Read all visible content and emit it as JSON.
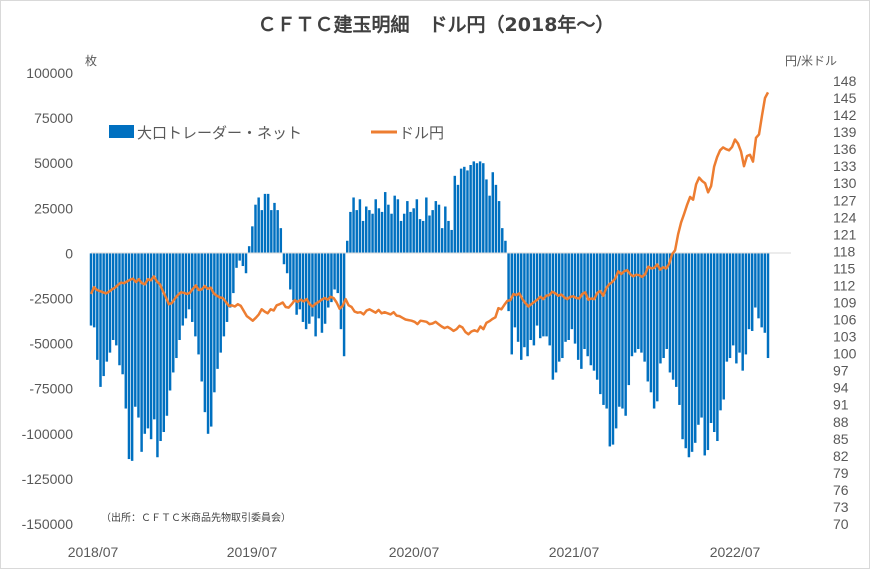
{
  "chart_data": {
    "type": "bar+line",
    "title": "ＣＦＴＣ建玉明細　ドル円（2018年～）",
    "left_unit": "枚",
    "right_unit": "円/米ドル",
    "source_note": "（出所：ＣＦＴＣ米商品先物取引委員会）",
    "left_ylim": [
      -150000,
      100000
    ],
    "left_ticks": [
      "100000",
      "75000",
      "50000",
      "25000",
      "0",
      "-25000",
      "-50000",
      "-75000",
      "-100000",
      "-125000",
      "-150000"
    ],
    "right_ylim": [
      70,
      150
    ],
    "right_ticks": [
      "148",
      "145",
      "142",
      "139",
      "136",
      "133",
      "130",
      "127",
      "124",
      "121",
      "118",
      "115",
      "112",
      "109",
      "106",
      "103",
      "100",
      "97",
      "94",
      "91",
      "88",
      "85",
      "82",
      "79",
      "76",
      "73",
      "70"
    ],
    "x_labels": [
      "2018/07",
      "2019/07",
      "2020/07",
      "2021/07",
      "2022/07"
    ],
    "x_range": [
      "2018/07",
      "2022/10"
    ],
    "legend_position": "top-left",
    "series": [
      {
        "name": "大口トレーダー・ネット",
        "type": "bar",
        "color": "#0070c0",
        "values": [
          -40000,
          -41000,
          -59000,
          -74000,
          -68000,
          -60000,
          -55000,
          -48000,
          -51000,
          -62000,
          -67000,
          -86000,
          -114000,
          -115000,
          -85000,
          -91000,
          -110000,
          -100000,
          -97000,
          -103000,
          -92000,
          -113000,
          -104000,
          -99000,
          -90000,
          -76000,
          -66000,
          -58000,
          -48000,
          -40000,
          -36000,
          -31000,
          -38000,
          -46000,
          -56000,
          -71000,
          -88000,
          -100000,
          -96000,
          -77000,
          -64000,
          -55000,
          -46000,
          -38000,
          -30000,
          -22000,
          -8000,
          -4000,
          -7000,
          -11000,
          4000,
          15000,
          27000,
          31000,
          24000,
          33000,
          33000,
          24000,
          28000,
          24000,
          14000,
          -6000,
          -11000,
          -20000,
          -26000,
          -34000,
          -31000,
          -38000,
          -42000,
          -39000,
          -35000,
          -46000,
          -36000,
          -44000,
          -39000,
          -30000,
          -27000,
          -20000,
          -22000,
          -42000,
          -57000,
          7000,
          23000,
          31000,
          24000,
          30000,
          18000,
          26000,
          24000,
          22000,
          30000,
          25000,
          23000,
          34000,
          27000,
          22000,
          32000,
          30000,
          18000,
          22000,
          29000,
          23000,
          25000,
          30000,
          19000,
          18000,
          31000,
          21000,
          24000,
          29000,
          27000,
          14000,
          26000,
          18000,
          13000,
          43000,
          38000,
          47000,
          48000,
          46000,
          49000,
          51000,
          50000,
          51000,
          50000,
          41000,
          32000,
          45000,
          38000,
          29000,
          14000,
          7000,
          -32000,
          -56000,
          -41000,
          -49000,
          -59000,
          -52000,
          -57000,
          -48000,
          -51000,
          -40000,
          -47000,
          -46000,
          -46000,
          -51000,
          -70000,
          -66000,
          -60000,
          -58000,
          -49000,
          -48000,
          -42000,
          -50000,
          -59000,
          -64000,
          -53000,
          -57000,
          -62000,
          -65000,
          -70000,
          -78000,
          -84000,
          -86000,
          -107000,
          -106000,
          -97000,
          -85000,
          -86000,
          -90000,
          -73000,
          -57000,
          -55000,
          -53000,
          -55000,
          -60000,
          -71000,
          -77000,
          -86000,
          -82000,
          -61000,
          -58000,
          -53000,
          -66000,
          -70000,
          -74000,
          -84000,
          -103000,
          -108000,
          -113000,
          -110000,
          -105000,
          -95000,
          -91000,
          -112000,
          -109000,
          -94000,
          -99000,
          -104000,
          -87000,
          -81000,
          -60000,
          -58000,
          -51000,
          -61000,
          -55000,
          -65000,
          -56000,
          -42000,
          -43000,
          -30000,
          -36000,
          -41000,
          -44000,
          -58000
        ]
      },
      {
        "name": "ドル円",
        "type": "line",
        "color": "#ed7d31",
        "values": [
          110.5,
          111.7,
          111.2,
          111.0,
          110.8,
          110.6,
          110.9,
          111.3,
          111.6,
          112.1,
          112.5,
          112.4,
          112.7,
          113.0,
          113.2,
          112.6,
          113.1,
          112.4,
          112.2,
          113.1,
          112.9,
          113.6,
          112.7,
          112.2,
          111.0,
          109.9,
          108.7,
          108.9,
          109.7,
          110.3,
          110.8,
          110.7,
          110.5,
          110.7,
          111.4,
          112.0,
          111.2,
          111.3,
          111.9,
          111.4,
          111.6,
          110.6,
          110.2,
          109.9,
          109.8,
          109.1,
          108.4,
          108.5,
          108.3,
          108.7,
          108.4,
          107.5,
          106.6,
          106.2,
          105.8,
          106.3,
          106.9,
          107.8,
          107.4,
          107.1,
          107.8,
          107.6,
          108.5,
          108.7,
          109.0,
          108.2,
          108.1,
          108.7,
          109.4,
          109.1,
          109.5,
          109.2,
          109.6,
          108.7,
          108.3,
          108.8,
          109.1,
          109.5,
          109.8,
          109.5,
          110.0,
          109.8,
          109.0,
          107.9,
          108.4,
          109.6,
          108.5,
          108.2,
          107.4,
          107.2,
          107.3,
          106.9,
          107.6,
          107.8,
          107.5,
          107.2,
          107.7,
          107.1,
          107.3,
          107.1,
          106.9,
          107.3,
          106.7,
          106.6,
          106.3,
          106.0,
          105.9,
          105.8,
          105.6,
          105.2,
          105.8,
          105.7,
          105.6,
          105.2,
          105.3,
          105.6,
          105.2,
          104.8,
          104.5,
          104.7,
          104.4,
          104.0,
          104.3,
          104.9,
          104.6,
          103.8,
          103.4,
          103.9,
          104.1,
          103.9,
          104.8,
          104.3,
          105.4,
          105.7,
          106.1,
          106.4,
          108.0,
          107.8,
          108.6,
          109.3,
          109.4,
          110.5,
          110.3,
          110.6,
          109.6,
          108.9,
          108.3,
          108.7,
          109.1,
          109.5,
          110.0,
          109.6,
          110.2,
          110.3,
          110.9,
          110.6,
          110.2,
          110.4,
          109.9,
          109.6,
          110.0,
          110.1,
          109.8,
          109.7,
          110.5,
          110.8,
          109.5,
          109.7,
          109.6,
          110.7,
          111.0,
          110.2,
          111.5,
          112.2,
          112.6,
          113.2,
          114.5,
          114.0,
          114.5,
          114.7,
          114.0,
          113.6,
          113.9,
          113.8,
          113.5,
          114.0,
          115.3,
          115.0,
          115.1,
          115.7,
          114.8,
          115.2,
          115.0,
          115.8,
          117.5,
          118.2,
          121.0,
          123.1,
          124.6,
          126.2,
          127.6,
          127.1,
          129.8,
          131.0,
          130.4,
          130.0,
          128.4,
          129.5,
          132.9,
          134.6,
          135.8,
          136.3,
          136.0,
          135.8,
          136.4,
          137.7,
          137.0,
          135.6,
          133.0,
          134.8,
          135.0,
          133.8,
          138.0,
          138.6,
          141.9,
          145.0,
          146.0
        ]
      }
    ]
  }
}
